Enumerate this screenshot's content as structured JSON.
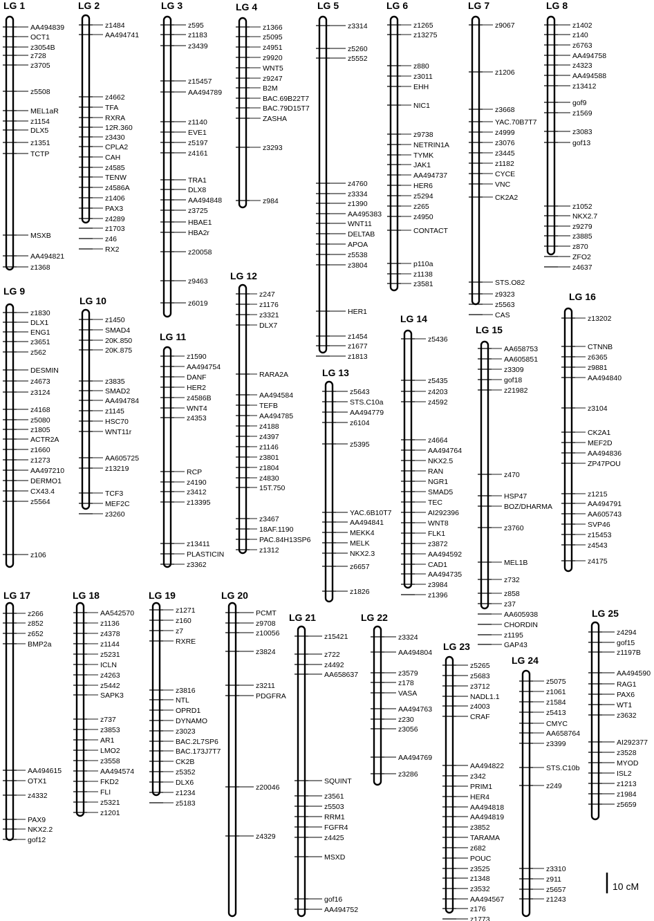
{
  "linkage_groups": [
    {
      "name": "LG 1",
      "markers": [
        "AA494839",
        "OCT1",
        "z3054B",
        "z728",
        "z3705",
        "z5508",
        "MEL1aR",
        "z1154",
        "DLX5",
        "z1351",
        "TCTP",
        "MSXB",
        "AA494821",
        "z1368"
      ]
    },
    {
      "name": "LG 2",
      "markers": [
        "z1484",
        "AA494741",
        "z4662",
        "TFA",
        "RXRA",
        "12R.360",
        "z3430",
        "CPLA2",
        "CAH",
        "z4585",
        "TENW",
        "z4586A",
        "z1406",
        "PAX3",
        "z4289",
        "z1703",
        "z46",
        "RX2"
      ]
    },
    {
      "name": "LG 3",
      "markers": [
        "z595",
        "z1183",
        "z3439",
        "z15457",
        "AA494789",
        "z1140",
        "EVE1",
        "z5197",
        "z4161",
        "TRA1",
        "DLX8",
        "AA494848",
        "z3725",
        "HBAE1",
        "HBA2r",
        "z20058",
        "z9463",
        "z6019"
      ]
    },
    {
      "name": "LG 4",
      "markers": [
        "z1366",
        "z5095",
        "z4951",
        "z9920",
        "WNT5",
        "z9247",
        "B2M",
        "BAC.69B22T7",
        "BAC.79D15T7",
        "ZASHA",
        "z3293",
        "z984"
      ]
    },
    {
      "name": "LG 5",
      "markers": [
        "z3314",
        "z5260",
        "z5552",
        "z4760",
        "z3334",
        "z1390",
        "AA495383",
        "WNT11",
        "DELTAB",
        "APOA",
        "z5538",
        "z3804",
        "HER1",
        "z1454",
        "z1677",
        "z1813"
      ]
    },
    {
      "name": "LG 6",
      "markers": [
        "z1265",
        "z13275",
        "z880",
        "z3011",
        "EHH",
        "NIC1",
        "z9738",
        "NETRIN1A",
        "TYMK",
        "JAK1",
        "AA494737",
        "HER6",
        "z5294",
        "z265",
        "z4950",
        "CONTACT",
        "p110a",
        "z1138",
        "z3581"
      ]
    },
    {
      "name": "LG 7",
      "markers": [
        "z9067",
        "z1206",
        "z3668",
        "YAC.70B7T7",
        "z4999",
        "z3076",
        "z3445",
        "z1182",
        "CYCE",
        "VNC",
        "CK2A2",
        "STS.O82",
        "z9323",
        "z5563",
        "CAS"
      ]
    },
    {
      "name": "LG 8",
      "markers": [
        "z1402",
        "z140",
        "z6763",
        "AA494758",
        "z4323",
        "AA494588",
        "z13412",
        "gof9",
        "z1569",
        "z3083",
        "gof13",
        "z1052",
        "NKX2.7",
        "z9279",
        "z3885",
        "z870",
        "ZFO2",
        "z4637"
      ]
    },
    {
      "name": "LG 9",
      "markers": [
        "z1830",
        "DLX1",
        "ENG1",
        "z3651",
        "z562",
        "DESMIN",
        "z4673",
        "z3124",
        "z4168",
        "z5080",
        "z1805",
        "ACTR2A",
        "z1660",
        "z1273",
        "AA497210",
        "DERMO1",
        "CX43.4",
        "z5564",
        "z106"
      ]
    },
    {
      "name": "LG 10",
      "markers": [
        "z1450",
        "SMAD4",
        "20K.850",
        "20K.875",
        "z3835",
        "SMAD2",
        "AA494784",
        "z1145",
        "HSC70",
        "WNT11r",
        "AA605725",
        "z13219",
        "TCF3",
        "MEF2C",
        "z3260"
      ]
    },
    {
      "name": "LG 11",
      "markers": [
        "z1590",
        "AA494754",
        "DANF",
        "HER2",
        "z4586B",
        "WNT4",
        "z4353",
        "RCP",
        "z4190",
        "z3412",
        "z13395",
        "z13411",
        "PLASTICIN",
        "z3362"
      ]
    },
    {
      "name": "LG 12",
      "markers": [
        "z247",
        "z1176",
        "z3321",
        "DLX7",
        "RARA2A",
        "AA494584",
        "TEFB",
        "AA494785",
        "z4188",
        "z4397",
        "z1146",
        "z3801",
        "z1804",
        "z4830",
        "15T.750",
        "z3467",
        "18AF.1190",
        "PAC.84H13SP6",
        "z1312"
      ]
    },
    {
      "name": "LG 13",
      "markers": [
        "z5643",
        "STS.C10a",
        "AA494779",
        "z6104",
        "z5395",
        "YAC.6B10T7",
        "AA494841",
        "MEKK4",
        "MELK",
        "NKX2.3",
        "z6657",
        "z1826"
      ]
    },
    {
      "name": "LG 14",
      "markers": [
        "z5436",
        "z5435",
        "z4203",
        "z4592",
        "z4664",
        "AA494764",
        "NKX2.5",
        "RAN",
        "NGR1",
        "SMAD5",
        "TEC",
        "AI292396",
        "WNT8",
        "FLK1",
        "z3872",
        "AA494592",
        "CAD1",
        "AA494735",
        "z3984",
        "z1396"
      ]
    },
    {
      "name": "LG 15",
      "markers": [
        "AA658753",
        "AA605851",
        "z3309",
        "gof18",
        "z21982",
        "z470",
        "HSP47",
        "BOZ/DHARMA",
        "z3760",
        "MEL1B",
        "z732",
        "z858",
        "z37",
        "AA605938",
        "CHORDIN",
        "z1195",
        "GAP43"
      ]
    },
    {
      "name": "LG 16",
      "markers": [
        "z13202",
        "CTNNB",
        "z6365",
        "z9881",
        "AA494840",
        "z3104",
        "CK2A1",
        "MEF2D",
        "AA494836",
        "ZP47POU",
        "z1215",
        "AA494791",
        "AA605743",
        "SVP46",
        "z15453",
        "z4543",
        "z4175"
      ]
    },
    {
      "name": "LG 17",
      "markers": [
        "z266",
        "z852",
        "z652",
        "BMP2a",
        "AA494615",
        "OTX1",
        "z4332",
        "PAX9",
        "NKX2.2",
        "gof12"
      ]
    },
    {
      "name": "LG 18",
      "markers": [
        "AA542570",
        "z1136",
        "z4378",
        "z1144",
        "z5231",
        "ICLN",
        "z4263",
        "z5442",
        "SAPK3",
        "z737",
        "z3853",
        "AR1",
        "LMO2",
        "z3558",
        "AA494574",
        "FKD2",
        "FLI",
        "z5321",
        "z1201"
      ]
    },
    {
      "name": "LG 19",
      "markers": [
        "z1271",
        "z160",
        "z7",
        "RXRE",
        "z3816",
        "NTL",
        "OPRD1",
        "DYNAMO",
        "z3023",
        "BAC.2L7SP6",
        "BAC.173J7T7",
        "CK2B",
        "z5352",
        "DLX6",
        "z1234",
        "z5183"
      ]
    },
    {
      "name": "LG 20",
      "markers": [
        "PCMT",
        "z9708",
        "z10056",
        "z3824",
        "z3211",
        "PDGFRA",
        "z20046",
        "z4329"
      ]
    },
    {
      "name": "LG 21",
      "markers": [
        "z15421",
        "z722",
        "z4492",
        "AA658637",
        "SQUINT",
        "z3561",
        "z5503",
        "RRM1",
        "FGFR4",
        "z4425",
        "MSXD",
        "gof16",
        "AA494752"
      ]
    },
    {
      "name": "LG 22",
      "markers": [
        "z3324",
        "AA494804",
        "z3579",
        "z178",
        "VASA",
        "AA494763",
        "z230",
        "z3056",
        "AA494769",
        "z3286"
      ]
    },
    {
      "name": "LG 23",
      "markers": [
        "z5265",
        "z5683",
        "z3712",
        "NADL1.1",
        "z4003",
        "CRAF",
        "AA494822",
        "z342",
        "PRIM1",
        "HER4",
        "AA494818",
        "AA494819",
        "z3852",
        "TARAMA",
        "z682",
        "POUC",
        "z3525",
        "z1348",
        "z3532",
        "AA494567",
        "z176",
        "z1773"
      ]
    },
    {
      "name": "LG 24",
      "markers": [
        "z5075",
        "z1061",
        "z1584",
        "z5413",
        "CMYC",
        "AA658764",
        "z3399",
        "STS.C10b",
        "z249",
        "z3310",
        "z911",
        "z5657",
        "z1243"
      ]
    },
    {
      "name": "LG 25",
      "markers": [
        "z4294",
        "gof15",
        "z1197B",
        "AA494590",
        "RAG1",
        "PAX6",
        "WT1",
        "z3632",
        "AI292377",
        "z3528",
        "MYOD",
        "ISL2",
        "z1213",
        "z1984",
        "z5659"
      ]
    }
  ],
  "scale_bar": {
    "label": "10 cM",
    "length_cM": 10
  }
}
